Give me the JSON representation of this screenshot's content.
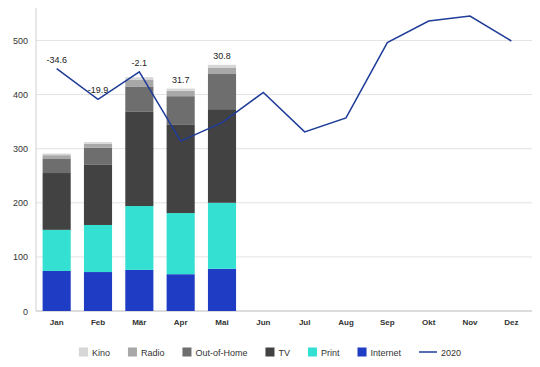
{
  "chart_data": {
    "type": "bar",
    "stacked": true,
    "grid": true,
    "legend": "bottom",
    "categories": [
      "Jan",
      "Feb",
      "Mär",
      "Apr",
      "Mai",
      "Jun",
      "Jul",
      "Aug",
      "Sep",
      "Okt",
      "Nov",
      "Dez"
    ],
    "ylim": [
      0,
      560
    ],
    "yticks": [
      0,
      100,
      200,
      300,
      400,
      500
    ],
    "change": [
      -34.6,
      -19.9,
      -2.1,
      31.7,
      30.8
    ],
    "series": [
      {
        "name": "Internet",
        "type": "bar",
        "color": "#1f3cc4",
        "values": [
          74,
          72,
          76,
          68,
          78,
          null,
          null,
          null,
          null,
          null,
          null,
          null
        ]
      },
      {
        "name": "Print",
        "type": "bar",
        "color": "#33e0d2",
        "values": [
          76,
          87,
          118,
          113,
          122,
          null,
          null,
          null,
          null,
          null,
          null,
          null
        ]
      },
      {
        "name": "TV",
        "type": "bar",
        "color": "#424242",
        "values": [
          105,
          112,
          175,
          164,
          173,
          null,
          null,
          null,
          null,
          null,
          null,
          null
        ]
      },
      {
        "name": "Out-of-Home",
        "type": "bar",
        "color": "#6e6e6e",
        "values": [
          27,
          31,
          46,
          52,
          65,
          null,
          null,
          null,
          null,
          null,
          null,
          null
        ]
      },
      {
        "name": "Radio",
        "type": "bar",
        "color": "#a8a8a8",
        "values": [
          6,
          7,
          12,
          10,
          12,
          null,
          null,
          null,
          null,
          null,
          null,
          null
        ]
      },
      {
        "name": "Kino",
        "type": "bar",
        "color": "#d6d6d6",
        "values": [
          3,
          3,
          5,
          4,
          5,
          null,
          null,
          null,
          null,
          null,
          null,
          null
        ]
      },
      {
        "name": "2020",
        "type": "line",
        "color": "#1f3c99",
        "values": [
          448,
          391,
          442,
          314,
          348,
          404,
          331,
          357,
          496,
          536,
          545,
          499
        ]
      }
    ]
  }
}
